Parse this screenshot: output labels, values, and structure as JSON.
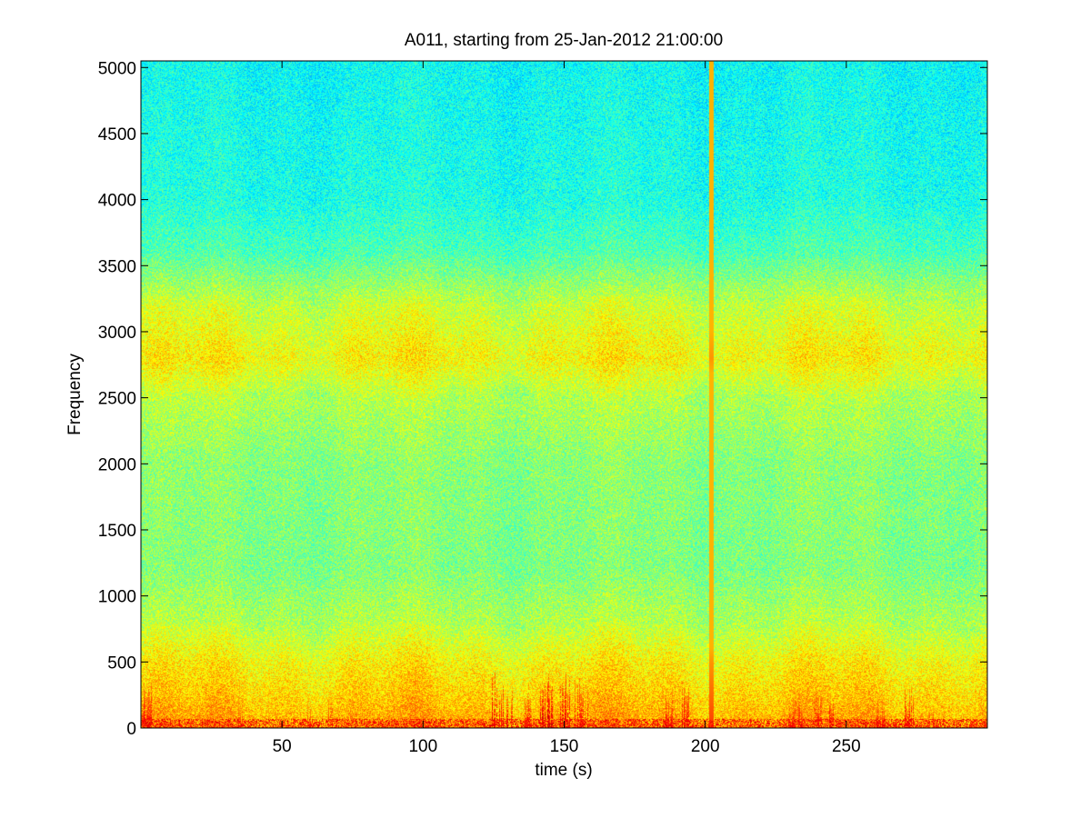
{
  "chart_data": {
    "type": "heatmap",
    "title": "A011, starting from 25-Jan-2012 21:00:00",
    "xlabel": "time (s)",
    "ylabel": "Frequency",
    "xlim": [
      0,
      300
    ],
    "ylim": [
      0,
      5050
    ],
    "x_ticks": [
      50,
      100,
      150,
      200,
      250
    ],
    "y_ticks": [
      0,
      500,
      1000,
      1500,
      2000,
      2500,
      3000,
      3500,
      4000,
      4500,
      5000
    ],
    "colormap": "jet",
    "grid": false,
    "legend": "none",
    "background_intensity_by_frequency": [
      {
        "frequency": 0,
        "intensity": 0.72
      },
      {
        "frequency": 200,
        "intensity": 0.68
      },
      {
        "frequency": 500,
        "intensity": 0.63
      },
      {
        "frequency": 800,
        "intensity": 0.55
      },
      {
        "frequency": 1200,
        "intensity": 0.5
      },
      {
        "frequency": 2000,
        "intensity": 0.51
      },
      {
        "frequency": 2500,
        "intensity": 0.55
      },
      {
        "frequency": 2800,
        "intensity": 0.63
      },
      {
        "frequency": 3200,
        "intensity": 0.57
      },
      {
        "frequency": 3600,
        "intensity": 0.45
      },
      {
        "frequency": 4000,
        "intensity": 0.4
      },
      {
        "frequency": 5050,
        "intensity": 0.38
      }
    ],
    "bursts": [
      {
        "time": 2,
        "width": 3,
        "fmax": 350,
        "intensity": 0.9
      },
      {
        "time": 35,
        "width": 1,
        "fmax": 250,
        "intensity": 0.85
      },
      {
        "time": 60,
        "width": 2,
        "fmax": 300,
        "intensity": 0.85
      },
      {
        "time": 67,
        "width": 1,
        "fmax": 250,
        "intensity": 0.85
      },
      {
        "time": 90,
        "width": 2,
        "fmax": 150,
        "intensity": 0.82
      },
      {
        "time": 126,
        "width": 4,
        "fmax": 450,
        "intensity": 0.92
      },
      {
        "time": 131,
        "width": 3,
        "fmax": 400,
        "intensity": 0.9
      },
      {
        "time": 137,
        "width": 2,
        "fmax": 350,
        "intensity": 0.88
      },
      {
        "time": 144,
        "width": 5,
        "fmax": 450,
        "intensity": 0.95
      },
      {
        "time": 150,
        "width": 3,
        "fmax": 450,
        "intensity": 0.92
      },
      {
        "time": 156,
        "width": 4,
        "fmax": 400,
        "intensity": 0.9
      },
      {
        "time": 187,
        "width": 2,
        "fmax": 300,
        "intensity": 0.9
      },
      {
        "time": 193,
        "width": 2,
        "fmax": 400,
        "intensity": 0.9
      },
      {
        "time": 202,
        "width": 1,
        "fmax": 5050,
        "intensity": 0.75
      },
      {
        "time": 232,
        "width": 4,
        "fmax": 300,
        "intensity": 0.88
      },
      {
        "time": 240,
        "width": 3,
        "fmax": 300,
        "intensity": 0.9
      },
      {
        "time": 245,
        "width": 2,
        "fmax": 250,
        "intensity": 0.92
      },
      {
        "time": 262,
        "width": 2,
        "fmax": 250,
        "intensity": 0.88
      },
      {
        "time": 272,
        "width": 3,
        "fmax": 300,
        "intensity": 0.9
      },
      {
        "time": 280,
        "width": 2,
        "fmax": 200,
        "intensity": 0.85
      },
      {
        "time": 295,
        "width": 2,
        "fmax": 150,
        "intensity": 0.82
      }
    ]
  }
}
